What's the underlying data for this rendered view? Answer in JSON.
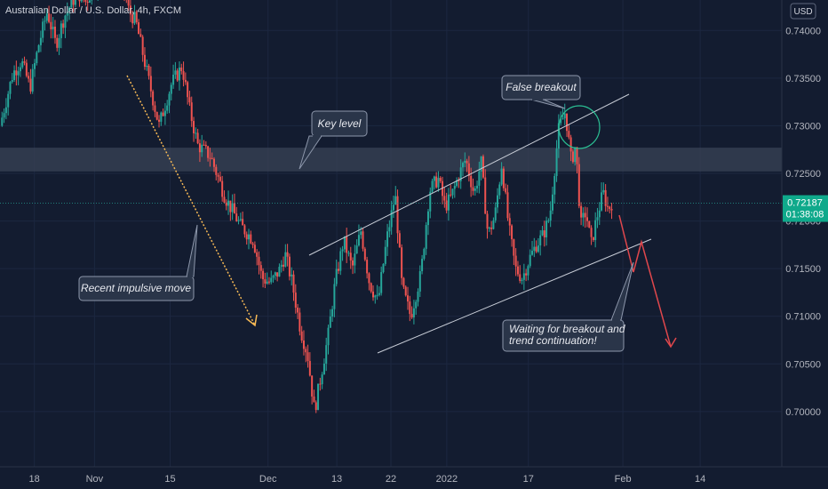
{
  "chart_data": {
    "type": "candlestick",
    "title": "Australian Dollar / U.S. Dollar, 4h, FXCM",
    "currency": "USD",
    "y_ticks": [
      "0.74000",
      "0.73500",
      "0.73000",
      "0.72500",
      "0.72000",
      "0.71500",
      "0.71000",
      "0.70500",
      "0.70000"
    ],
    "y_tick_values": [
      0.74,
      0.735,
      0.73,
      0.725,
      0.72,
      0.715,
      0.71,
      0.705,
      0.7
    ],
    "ylim": [
      0.6942,
      0.7432
    ],
    "x_ticks": [
      "18",
      "Nov",
      "15",
      "Dec",
      "13",
      "22",
      "2022",
      "17",
      "Feb",
      "14"
    ],
    "x_tick_positions": [
      0.0,
      0.07,
      0.158,
      0.272,
      0.352,
      0.415,
      0.48,
      0.575,
      0.685,
      0.775
    ],
    "x_range": [
      -0.04,
      0.87
    ],
    "last_price": "0.72187",
    "last_price_value": 0.72187,
    "countdown": "01:38:08",
    "key_level_zone": [
      0.7252,
      0.7277
    ],
    "waypoints": [
      [
        -0.04,
        0.73
      ],
      [
        -0.025,
        0.7355
      ],
      [
        -0.015,
        0.7368
      ],
      [
        -0.005,
        0.734
      ],
      [
        0.005,
        0.7385
      ],
      [
        0.015,
        0.742
      ],
      [
        0.025,
        0.7385
      ],
      [
        0.035,
        0.7415
      ],
      [
        0.05,
        0.744
      ],
      [
        0.06,
        0.743
      ],
      [
        0.075,
        0.7455
      ],
      [
        0.095,
        0.7485
      ],
      [
        0.11,
        0.742
      ],
      [
        0.118,
        0.741
      ],
      [
        0.13,
        0.736
      ],
      [
        0.145,
        0.73
      ],
      [
        0.16,
        0.7345
      ],
      [
        0.172,
        0.7362
      ],
      [
        0.18,
        0.732
      ],
      [
        0.19,
        0.728
      ],
      [
        0.205,
        0.7268
      ],
      [
        0.222,
        0.7225
      ],
      [
        0.24,
        0.7195
      ],
      [
        0.255,
        0.718
      ],
      [
        0.265,
        0.714
      ],
      [
        0.275,
        0.7135
      ],
      [
        0.285,
        0.7148
      ],
      [
        0.292,
        0.7165
      ],
      [
        0.3,
        0.7135
      ],
      [
        0.31,
        0.7085
      ],
      [
        0.318,
        0.706
      ],
      [
        0.326,
        0.7
      ],
      [
        0.335,
        0.7045
      ],
      [
        0.342,
        0.708
      ],
      [
        0.35,
        0.7135
      ],
      [
        0.36,
        0.718
      ],
      [
        0.37,
        0.715
      ],
      [
        0.38,
        0.719
      ],
      [
        0.39,
        0.7135
      ],
      [
        0.4,
        0.7115
      ],
      [
        0.41,
        0.718
      ],
      [
        0.42,
        0.7228
      ],
      [
        0.428,
        0.713
      ],
      [
        0.438,
        0.71
      ],
      [
        0.45,
        0.7145
      ],
      [
        0.46,
        0.7232
      ],
      [
        0.47,
        0.7245
      ],
      [
        0.478,
        0.7215
      ],
      [
        0.485,
        0.7225
      ],
      [
        0.495,
        0.725
      ],
      [
        0.502,
        0.7265
      ],
      [
        0.512,
        0.7228
      ],
      [
        0.52,
        0.7262
      ],
      [
        0.528,
        0.7185
      ],
      [
        0.536,
        0.7205
      ],
      [
        0.544,
        0.726
      ],
      [
        0.552,
        0.7195
      ],
      [
        0.56,
        0.715
      ],
      [
        0.568,
        0.714
      ],
      [
        0.576,
        0.716
      ],
      [
        0.584,
        0.7175
      ],
      [
        0.592,
        0.7185
      ],
      [
        0.6,
        0.7205
      ],
      [
        0.61,
        0.7295
      ],
      [
        0.618,
        0.7315
      ],
      [
        0.625,
        0.7262
      ],
      [
        0.63,
        0.728
      ],
      [
        0.636,
        0.7195
      ],
      [
        0.642,
        0.721
      ],
      [
        0.648,
        0.7175
      ],
      [
        0.655,
        0.7205
      ],
      [
        0.662,
        0.723
      ],
      [
        0.668,
        0.7212
      ],
      [
        0.672,
        0.7219
      ]
    ],
    "annotations": {
      "key_level": "Key level",
      "false_breakout": "False breakout",
      "recent_impulsive_move": "Recent impulsive move",
      "waiting_line1": "Waiting for breakout and",
      "waiting_line2": "trend continuation!"
    },
    "colors": {
      "background": "#131c30",
      "grid": "#1c2740",
      "up": "#26a69a",
      "down": "#ef5350",
      "zone": "#3a4356",
      "trendline": "#c7ccd6",
      "impulse_arrow": "#f7b955",
      "projection": "#e0474c",
      "circle": "#2bbf93",
      "note_fill": "#2a3549",
      "note_border": "#8d97ab",
      "price_tag": "#0fa98b",
      "axis_text": "#b2b5be"
    }
  }
}
